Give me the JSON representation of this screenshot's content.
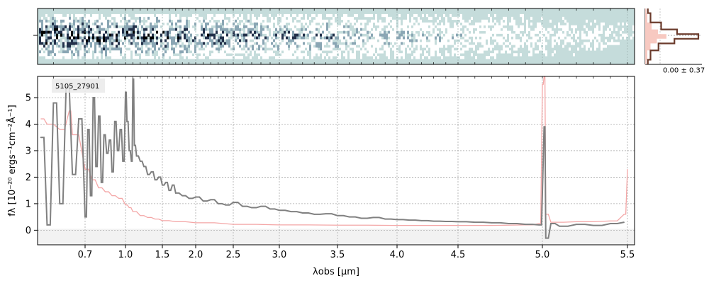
{
  "chart_data": [
    {
      "panel": "2d-spectrum",
      "type": "heatmap",
      "colormap": [
        "#c5dcdb",
        "#ffffff",
        "#8aa6b4",
        "#22304a",
        "#000000"
      ],
      "xlim": [
        0.55,
        5.52
      ],
      "x_axis_scale": "wavelength (same as 1D spectrum)",
      "y_center_marker": true
    },
    {
      "panel": "profile",
      "type": "line",
      "annotation": "0.00 ± 0.37",
      "profile_color": "#6b3b2c",
      "fill_color": "#f7c9c1",
      "profile_shape": [
        {
          "y": -3.0,
          "v": 0.05
        },
        {
          "y": -2.0,
          "v": 0.1
        },
        {
          "y": -1.0,
          "v": 0.25
        },
        {
          "y": -0.5,
          "v": 0.55
        },
        {
          "y": 0.0,
          "v": 1.0
        },
        {
          "y": 0.5,
          "v": 0.6
        },
        {
          "y": 1.0,
          "v": 0.3
        },
        {
          "y": 2.0,
          "v": 0.1
        },
        {
          "y": 3.0,
          "v": 0.05
        }
      ]
    },
    {
      "panel": "1d-spectrum",
      "type": "line",
      "label": "5105_27901",
      "xlabel": "λobs [µm]",
      "ylabel": "fλ [10⁻²⁰ ergs⁻¹cm⁻²Å⁻¹]",
      "xlim": [
        0.55,
        5.52
      ],
      "ylim": [
        -0.55,
        5.8
      ],
      "x_ticks": [
        "0.7",
        "1.0",
        "1.5",
        "2.0",
        "2.5",
        "3.0",
        "3.5",
        "4.0",
        "4.5",
        "5.0",
        "5.5"
      ],
      "x_tick_values": [
        0.7,
        1.0,
        1.5,
        2.0,
        2.5,
        3.0,
        3.5,
        4.0,
        4.5,
        5.0,
        5.5
      ],
      "y_ticks": [
        0,
        1,
        2,
        3,
        4,
        5
      ],
      "grid": true,
      "colors": {
        "flux": "#808080",
        "error": "#f4a6a6",
        "zero_band": "#f2f2f2"
      },
      "series": [
        {
          "role": "flux",
          "points": [
            [
              0.56,
              3.5
            ],
            [
              0.58,
              0.2
            ],
            [
              0.6,
              4.8
            ],
            [
              0.62,
              1.0
            ],
            [
              0.64,
              5.4
            ],
            [
              0.66,
              2.1
            ],
            [
              0.68,
              4.2
            ],
            [
              0.7,
              0.5
            ],
            [
              0.72,
              3.8
            ],
            [
              0.74,
              1.3
            ],
            [
              0.76,
              5.0
            ],
            [
              0.78,
              2.4
            ],
            [
              0.8,
              4.3
            ],
            [
              0.82,
              1.8
            ],
            [
              0.84,
              3.6
            ],
            [
              0.86,
              2.9
            ],
            [
              0.88,
              3.4
            ],
            [
              0.9,
              2.2
            ],
            [
              0.92,
              4.1
            ],
            [
              0.94,
              3.0
            ],
            [
              0.96,
              3.8
            ],
            [
              0.98,
              2.6
            ],
            [
              1.0,
              5.2
            ],
            [
              1.02,
              4.1
            ],
            [
              1.05,
              3.0
            ],
            [
              1.08,
              2.6
            ],
            [
              1.1,
              5.7
            ],
            [
              1.12,
              3.2
            ],
            [
              1.15,
              2.8
            ],
            [
              1.2,
              2.6
            ],
            [
              1.25,
              2.4
            ],
            [
              1.3,
              2.1
            ],
            [
              1.35,
              2.2
            ],
            [
              1.4,
              1.9
            ],
            [
              1.45,
              2.0
            ],
            [
              1.5,
              1.7
            ],
            [
              1.55,
              1.8
            ],
            [
              1.6,
              1.5
            ],
            [
              1.65,
              1.7
            ],
            [
              1.7,
              1.4
            ],
            [
              1.8,
              1.3
            ],
            [
              1.9,
              1.2
            ],
            [
              2.0,
              1.25
            ],
            [
              2.1,
              1.1
            ],
            [
              2.2,
              1.15
            ],
            [
              2.3,
              1.0
            ],
            [
              2.4,
              0.95
            ],
            [
              2.5,
              1.05
            ],
            [
              2.6,
              0.9
            ],
            [
              2.7,
              0.85
            ],
            [
              2.8,
              0.9
            ],
            [
              2.9,
              0.8
            ],
            [
              3.0,
              0.75
            ],
            [
              3.1,
              0.7
            ],
            [
              3.2,
              0.65
            ],
            [
              3.3,
              0.6
            ],
            [
              3.4,
              0.62
            ],
            [
              3.5,
              0.55
            ],
            [
              3.6,
              0.5
            ],
            [
              3.7,
              0.45
            ],
            [
              3.8,
              0.48
            ],
            [
              3.9,
              0.42
            ],
            [
              4.0,
              0.4
            ],
            [
              4.1,
              0.38
            ],
            [
              4.2,
              0.36
            ],
            [
              4.3,
              0.34
            ],
            [
              4.4,
              0.33
            ],
            [
              4.5,
              0.32
            ],
            [
              4.6,
              0.3
            ],
            [
              4.7,
              0.28
            ],
            [
              4.8,
              0.25
            ],
            [
              4.9,
              0.22
            ],
            [
              4.98,
              0.2
            ],
            [
              5.01,
              3.9
            ],
            [
              5.02,
              -0.3
            ],
            [
              5.05,
              0.25
            ],
            [
              5.1,
              0.15
            ],
            [
              5.2,
              0.22
            ],
            [
              5.3,
              0.18
            ],
            [
              5.4,
              0.25
            ],
            [
              5.48,
              0.3
            ]
          ]
        },
        {
          "role": "error",
          "points": [
            [
              0.56,
              4.2
            ],
            [
              0.58,
              4.0
            ],
            [
              0.62,
              3.8
            ],
            [
              0.65,
              4.5
            ],
            [
              0.66,
              3.6
            ],
            [
              0.7,
              2.3
            ],
            [
              0.75,
              1.9
            ],
            [
              0.8,
              1.6
            ],
            [
              0.85,
              1.45
            ],
            [
              0.9,
              1.3
            ],
            [
              0.95,
              1.2
            ],
            [
              1.0,
              0.95
            ],
            [
              1.05,
              0.85
            ],
            [
              1.1,
              0.7
            ],
            [
              1.2,
              0.55
            ],
            [
              1.3,
              0.48
            ],
            [
              1.4,
              0.42
            ],
            [
              1.5,
              0.36
            ],
            [
              1.7,
              0.32
            ],
            [
              2.0,
              0.28
            ],
            [
              2.5,
              0.22
            ],
            [
              3.0,
              0.2
            ],
            [
              3.5,
              0.19
            ],
            [
              4.0,
              0.18
            ],
            [
              4.5,
              0.18
            ],
            [
              4.9,
              0.2
            ],
            [
              4.98,
              0.25
            ],
            [
              5.0,
              5.5
            ],
            [
              5.01,
              6.5
            ],
            [
              5.02,
              0.6
            ],
            [
              5.05,
              0.3
            ],
            [
              5.2,
              0.32
            ],
            [
              5.4,
              0.35
            ],
            [
              5.48,
              0.6
            ],
            [
              5.5,
              2.3
            ]
          ]
        }
      ]
    }
  ]
}
